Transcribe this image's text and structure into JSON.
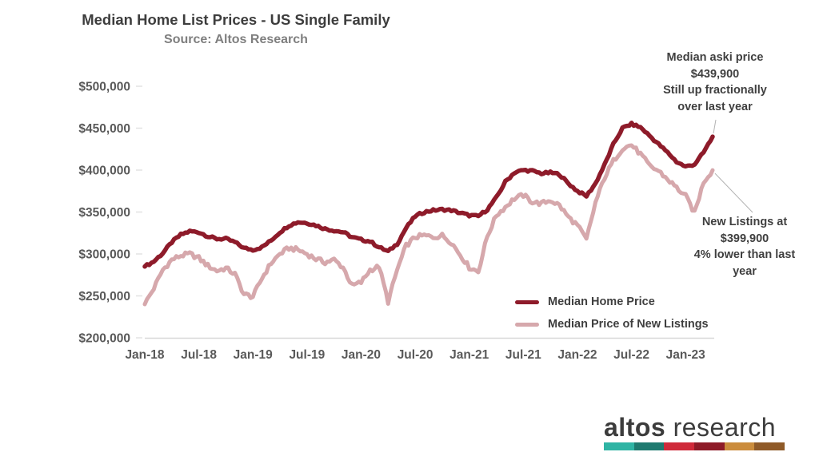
{
  "header": {
    "title": "Median Home List Prices - US Single Family",
    "source": "Source: Altos Research"
  },
  "annotations": {
    "ask": {
      "lines": [
        "Median aski price",
        "$439,900",
        "Still up fractionally",
        "over last year"
      ]
    },
    "new_listings": {
      "lines": [
        "New Listings at",
        "$399,900",
        "4% lower than last",
        "year"
      ]
    }
  },
  "legend": {
    "items": [
      {
        "label": "Median Home Price",
        "color": "#8e1b2a"
      },
      {
        "label": "Median Price of New Listings",
        "color": "#d6a8ac"
      }
    ]
  },
  "chart_data": {
    "type": "line",
    "title": "Median Home List Prices - US Single Family",
    "subtitle": "Source: Altos Research",
    "x_start": "Jan-18",
    "x_end": "Apr-23",
    "x_interval": "monthly",
    "x_tick_labels": [
      "Jan-18",
      "Jul-18",
      "Jan-19",
      "Jul-19",
      "Jan-20",
      "Jul-20",
      "Jan-21",
      "Jul-21",
      "Jan-22",
      "Jul-22",
      "Jan-23"
    ],
    "x_tick_month_step": 6,
    "y_tick_labels": [
      "$500,000",
      "$450,000",
      "$400,000",
      "$350,000",
      "$300,000",
      "$250,000",
      "$200,000"
    ],
    "y_tick_values": [
      500000,
      450000,
      400000,
      350000,
      300000,
      250000,
      200000
    ],
    "ylim": [
      200000,
      500000
    ],
    "grid": false,
    "legend_position": "inside-lower-right",
    "series": [
      {
        "name": "Median Home Price",
        "color": "#8e1b2a",
        "end_label_value": 439900,
        "values": [
          285000,
          291000,
          301000,
          314000,
          323000,
          327000,
          326000,
          321000,
          318000,
          318000,
          314000,
          307000,
          305000,
          308000,
          316000,
          326000,
          334000,
          338000,
          337000,
          334000,
          330000,
          328000,
          326000,
          320000,
          317000,
          315000,
          308000,
          303000,
          312000,
          331000,
          345000,
          350000,
          352000,
          353000,
          352000,
          349000,
          346000,
          345000,
          353000,
          367000,
          386000,
          397000,
          400000,
          399000,
          396000,
          397000,
          395000,
          384000,
          375000,
          369000,
          384000,
          406000,
          431000,
          450000,
          455000,
          451000,
          441000,
          431000,
          421000,
          410000,
          404000,
          407000,
          421000,
          439900
        ]
      },
      {
        "name": "Median Price of New Listings",
        "color": "#d6a8ac",
        "end_label_value": 399900,
        "values": [
          240000,
          259000,
          281000,
          293000,
          298000,
          300000,
          295000,
          286000,
          280000,
          283000,
          276000,
          252000,
          249000,
          271000,
          289000,
          300000,
          307000,
          305000,
          300000,
          294000,
          290000,
          293000,
          284000,
          262000,
          266000,
          281000,
          285000,
          243000,
          281000,
          310000,
          320000,
          322000,
          320000,
          322000,
          314000,
          299000,
          284000,
          279000,
          321000,
          346000,
          356000,
          366000,
          370000,
          362000,
          360000,
          364000,
          358000,
          344000,
          334000,
          317000,
          361000,
          391000,
          411000,
          426000,
          430000,
          419000,
          405000,
          399000,
          389000,
          379000,
          369000,
          349000,
          386000,
          399900
        ]
      }
    ]
  },
  "logo": {
    "bold": "altos",
    "light": "research",
    "bar_colors": [
      "#2fb4a4",
      "#1f7a70",
      "#cf2a3a",
      "#8e1b28",
      "#cb8c3c",
      "#8f5a28"
    ]
  }
}
